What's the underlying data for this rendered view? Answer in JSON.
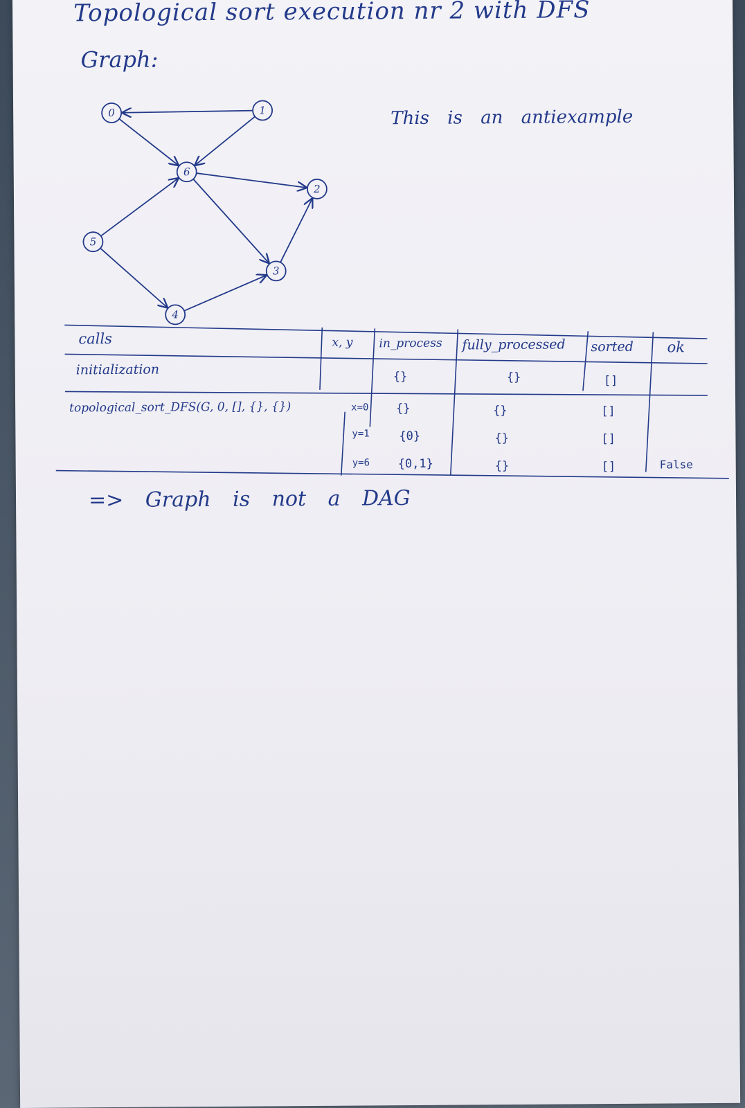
{
  "title": "Topological sort execution nr 2 with DFS",
  "graph_label": "Graph:",
  "note": "This is an antiexample",
  "graph": {
    "nodes": [
      "0",
      "1",
      "2",
      "3",
      "4",
      "5",
      "6"
    ],
    "edges": [
      [
        "1",
        "0"
      ],
      [
        "0",
        "6"
      ],
      [
        "1",
        "6"
      ],
      [
        "6",
        "2"
      ],
      [
        "6",
        "3"
      ],
      [
        "3",
        "2"
      ],
      [
        "5",
        "6"
      ],
      [
        "5",
        "4"
      ],
      [
        "4",
        "3"
      ]
    ]
  },
  "table": {
    "headers": [
      "calls",
      "x, y",
      "in_process",
      "fully_processed",
      "sorted",
      "ok"
    ],
    "rows": [
      {
        "call": "initialization",
        "xy": "",
        "in_process": "{}",
        "fully_processed": "{}",
        "sorted": "[]",
        "ok": ""
      },
      {
        "call": "topological_sort_DFS(G, 0, [], {}, {})",
        "xy": "x=0",
        "in_process": "{}",
        "fully_processed": "{}",
        "sorted": "[]",
        "ok": ""
      },
      {
        "call": "",
        "xy": "y=1",
        "in_process": "{0}",
        "fully_processed": "{}",
        "sorted": "[]",
        "ok": ""
      },
      {
        "call": "",
        "xy": "y=6",
        "in_process": "{0,1}",
        "fully_processed": "{}",
        "sorted": "[]",
        "ok": "False"
      }
    ]
  },
  "conclusion": "=> Graph is not a DAG"
}
